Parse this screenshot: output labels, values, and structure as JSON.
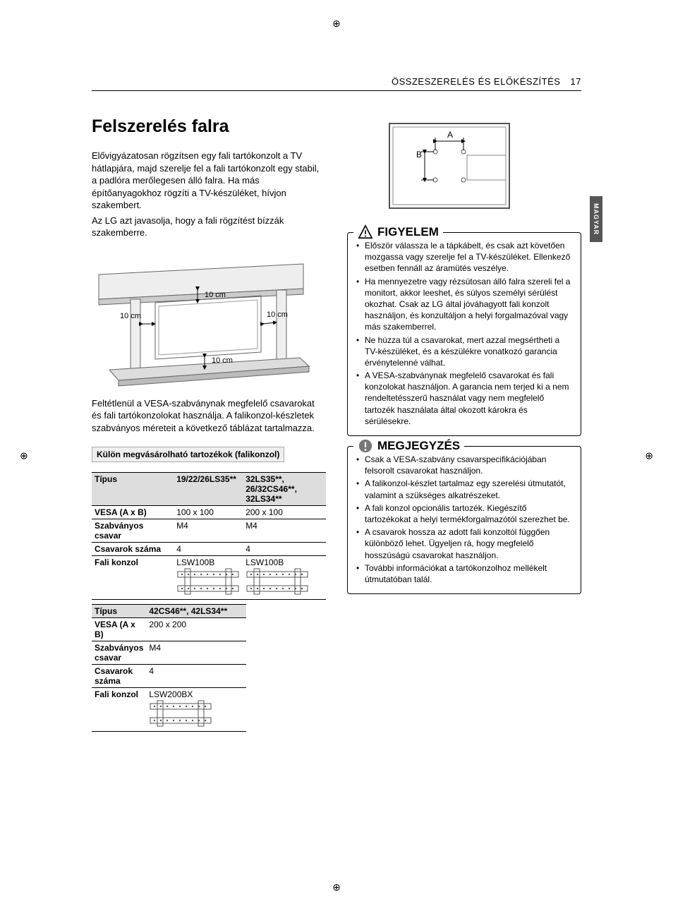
{
  "page": {
    "header_section": "ÖSSZESZERELÉS ÉS ELŐKÉSZÍTÉS",
    "page_number": "17",
    "side_tab": "MAGYAR"
  },
  "left": {
    "h1": "Felszerelés falra",
    "p1": "Elővigyázatosan rögzítsen egy fali tartókonzolt a TV hátlapjára, majd szerelje fel a fali tartókonzolt egy stabil, a padlóra merőlegesen álló falra. Ha más építőanyagokhoz rögzíti a TV-készüléket, hívjon szakembert.",
    "p2": "Az LG azt javasolja, hogy a fali rögzítést bízzák szakemberre.",
    "clearance_label": "10 cm",
    "p3": "Feltétlenül a VESA-szabványnak megfelelő csavarokat és fali tartókonzolokat használja. A falikonzol-készletek szabványos méreteit a következő táblázat tartalmazza.",
    "sep_title": "Külön megvásárolható tartozékok (falikonzol)",
    "table1": {
      "rows": [
        {
          "label": "Típus",
          "c1": "19/22/26LS35**",
          "c2": "32LS35**, 26/32CS46**, 32LS34**",
          "hdr": true
        },
        {
          "label": "VESA (A x B)",
          "c1": "100 x 100",
          "c2": "200 x 100"
        },
        {
          "label": "Szabványos csavar",
          "c1": "M4",
          "c2": "M4"
        },
        {
          "label": "Csavarok száma",
          "c1": "4",
          "c2": "4"
        },
        {
          "label": "Fali konzol",
          "c1": "LSW100B",
          "c2": "LSW100B",
          "bracket": true
        }
      ]
    },
    "table2": {
      "rows": [
        {
          "label": "Típus",
          "c1": "42CS46**, 42LS34**",
          "hdr": true
        },
        {
          "label": "VESA (A x B)",
          "c1": "200 x 200"
        },
        {
          "label": "Szabványos csavar",
          "c1": "M4"
        },
        {
          "label": "Csavarok száma",
          "c1": "4"
        },
        {
          "label": "Fali konzol",
          "c1": "LSW200BX",
          "bracket": true
        }
      ]
    }
  },
  "right": {
    "vesa": {
      "labelA": "A",
      "labelB": "B"
    },
    "caution": {
      "title": "FIGYELEM",
      "items": [
        "Először válassza le a tápkábelt, és csak azt követően mozgassa vagy szerelje fel a TV-készüléket. Ellenkező esetben fennáll az áramütés veszélye.",
        "Ha mennyezetre vagy rézsútosan álló falra szereli fel a monitort, akkor leeshet, és súlyos személyi sérülést okozhat. Csak az LG által jóváhagyott fali konzolt használjon, és konzultáljon a helyi forgalmazóval vagy más szakemberrel.",
        "Ne húzza túl a csavarokat, mert azzal megsértheti a TV-készüléket, és a készülékre vonatkozó garancia érvénytelenné válhat.",
        "A VESA-szabványnak megfelelő csavarokat és fali konzolokat használjon. A garancia nem terjed ki a nem rendeltetésszerű használat vagy nem megfelelő tartozék használata által okozott károkra és sérülésekre."
      ]
    },
    "note": {
      "title": "MEGJEGYZÉS",
      "items": [
        "Csak a VESA-szabvány csavarspecifikációjában felsorolt csavarokat használjon.",
        "A falikonzol-készlet tartalmaz egy szerelési útmutatót, valamint a szükséges alkatrészeket.",
        "A fali konzol opcionális tartozék. Kiegészítő tartozékokat a helyi termékforgalmazótól szerezhet be.",
        "A csavarok hossza az adott fali konzoltól függően különböző lehet. Ügyeljen rá, hogy megfelelő hosszúságú csavarokat használjon.",
        "További információkat a tartókonzolhoz mellékelt útmutatóban talál."
      ]
    }
  },
  "style": {
    "page_bg": "#ffffff",
    "text_color": "#000000",
    "hdr_bg": "#dddddd",
    "sep_bg": "#eeeeee",
    "tab_bg": "#555555",
    "tab_fg": "#ffffff",
    "body_font_size": 13,
    "table_font_size": 12,
    "h1_font_size": 25,
    "callout_title_size": 17
  }
}
